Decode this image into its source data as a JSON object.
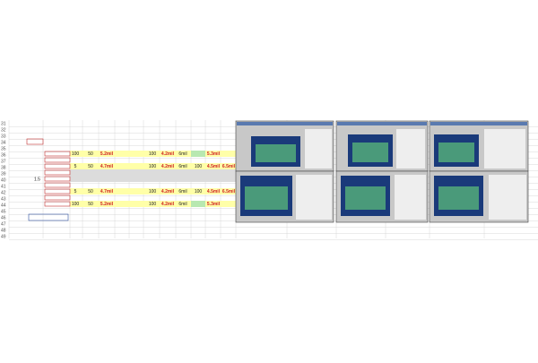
{
  "sheet": {
    "row_numbers": [
      "31",
      "32",
      "33",
      "34",
      "35",
      "36",
      "37",
      "38",
      "39",
      "40",
      "41",
      "42",
      "43",
      "44",
      "45",
      "46",
      "47",
      "48",
      "49"
    ],
    "side_value": "1.5",
    "rows": [
      {
        "cells": [
          "100",
          "50",
          "5.2mil",
          null,
          null,
          "100",
          "4.2mil",
          "6mil",
          null,
          "5.3mil",
          null
        ]
      },
      {
        "cells": [
          "5",
          "50",
          "4.7mil",
          null,
          null,
          "100",
          "4.2mil",
          "6mil",
          "100",
          "4.5mil",
          "6.5mil"
        ]
      },
      {
        "cells": [
          "5",
          "50",
          "4.7mil",
          null,
          null,
          "100",
          "4.2mil",
          "6mil",
          "100",
          "4.5mil",
          "6.5mil"
        ]
      },
      {
        "cells": [
          "100",
          "50",
          "5.2mil",
          null,
          null,
          "100",
          "4.2mil",
          "6mil",
          null,
          "5.3mil",
          null
        ]
      }
    ]
  }
}
